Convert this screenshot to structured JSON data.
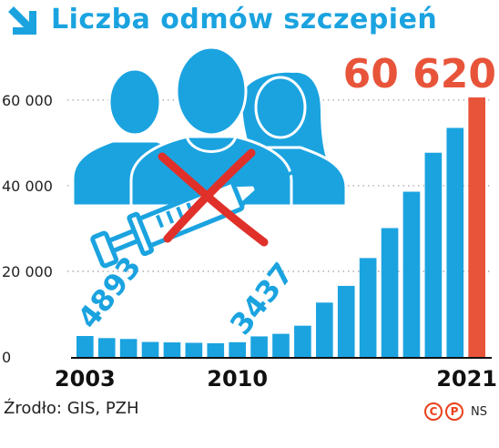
{
  "header": {
    "title": "Liczba odmów szczepień",
    "arrow_icon": "arrow-down-right-icon"
  },
  "footer": {
    "source": "Źrodło: GIS, PZH",
    "copyright_c": "C",
    "copyright_p": "P",
    "author": "NS"
  },
  "colors": {
    "bars": "#1ba3e0",
    "highlight": "#e8543a",
    "title": "#1ba3e0"
  },
  "chart_data": {
    "type": "bar",
    "categories": [
      "2003",
      "2004",
      "2005",
      "2006",
      "2007",
      "2008",
      "2009",
      "2010",
      "2011",
      "2012",
      "2013",
      "2014",
      "2015",
      "2016",
      "2017",
      "2018",
      "2019",
      "2020",
      "2021"
    ],
    "values": [
      4893,
      4400,
      4200,
      3500,
      3400,
      3300,
      3200,
      3437,
      4800,
      5400,
      7300,
      12700,
      16600,
      23100,
      30100,
      38600,
      47700,
      53500,
      60620
    ],
    "ylim": [
      0,
      60620
    ],
    "yticks": [
      0,
      20000,
      40000,
      60000
    ],
    "ytick_labels": [
      "0",
      "20 000",
      "40 000",
      "60 000"
    ],
    "xtick_labels": [
      {
        "index": 0,
        "label": "2003"
      },
      {
        "index": 7,
        "label": "2010"
      },
      {
        "index": 18,
        "label": "2021"
      }
    ],
    "annotations": [
      {
        "index": 0,
        "label": "4893"
      },
      {
        "index": 7,
        "label": "3437"
      }
    ],
    "highlight": {
      "index": 18,
      "label": "60 620"
    },
    "grid": true,
    "xlabel": "",
    "ylabel": ""
  }
}
